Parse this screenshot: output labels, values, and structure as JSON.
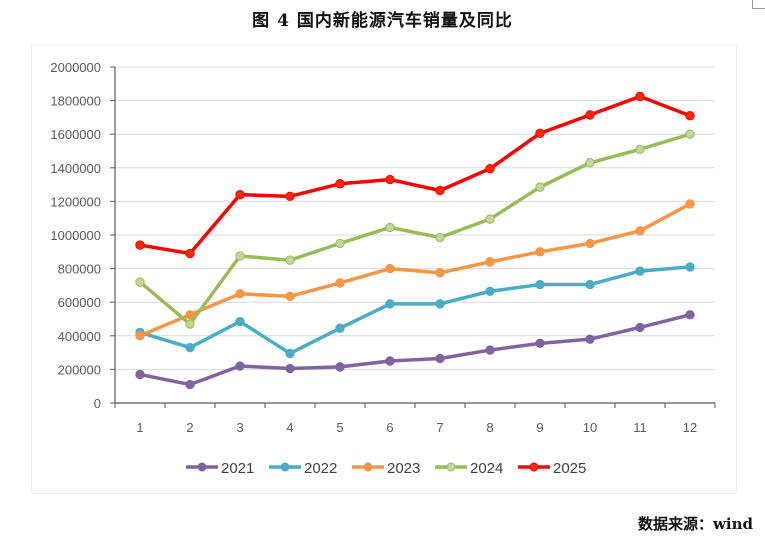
{
  "title": "图 4  国内新能源汽车销量及同比",
  "source": "数据来源：wind",
  "chart_data": {
    "type": "line",
    "title": "图 4  国内新能源汽车销量及同比",
    "xlabel": "",
    "ylabel": "",
    "x": [
      "1",
      "2",
      "3",
      "4",
      "5",
      "6",
      "7",
      "8",
      "9",
      "10",
      "11",
      "12"
    ],
    "ylim": [
      0,
      2000000
    ],
    "yticks": [
      0,
      200000,
      400000,
      600000,
      800000,
      1000000,
      1200000,
      1400000,
      1600000,
      1800000,
      2000000
    ],
    "ytick_labels": [
      "0",
      "200000",
      "400000",
      "600000",
      "800000",
      "1000000",
      "1200000",
      "1400000",
      "1600000",
      "1800000",
      "2000000"
    ],
    "grid": "horizontal",
    "legend_position": "bottom",
    "series": [
      {
        "name": "2021",
        "color": "#8064a2",
        "marker_fill": "#8064a2",
        "values": [
          170000,
          110000,
          220000,
          205000,
          215000,
          250000,
          265000,
          315000,
          355000,
          380000,
          450000,
          525000
        ]
      },
      {
        "name": "2022",
        "color": "#4bacc6",
        "marker_fill": "#4bacc6",
        "values": [
          420000,
          330000,
          485000,
          295000,
          445000,
          590000,
          590000,
          665000,
          705000,
          705000,
          785000,
          810000
        ]
      },
      {
        "name": "2023",
        "color": "#f79646",
        "marker_fill": "#f79646",
        "values": [
          400000,
          525000,
          650000,
          635000,
          715000,
          800000,
          775000,
          840000,
          900000,
          950000,
          1025000,
          1185000
        ]
      },
      {
        "name": "2024",
        "color": "#9bbb59",
        "marker_fill": "#c3d69b",
        "values": [
          720000,
          470000,
          875000,
          850000,
          950000,
          1045000,
          985000,
          1095000,
          1285000,
          1430000,
          1510000,
          1600000
        ]
      },
      {
        "name": "2025",
        "color": "#ff0000",
        "marker_fill": "#ff2a00",
        "values": [
          940000,
          890000,
          1240000,
          1230000,
          1305000,
          1330000,
          1265000,
          1395000,
          1605000,
          1715000,
          1825000,
          1710000
        ]
      }
    ]
  }
}
